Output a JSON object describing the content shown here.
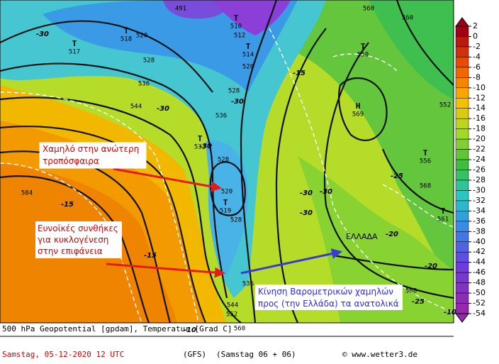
{
  "map": {
    "annotations": [
      {
        "lines": [
          "Χαμηλό στην ανώτερη",
          "τροπόσφαιρα"
        ]
      },
      {
        "lines": [
          "Ευνοϊκές συνθήκες",
          "για κυκλογένεση",
          "στην επιφάνεια"
        ]
      },
      {
        "lines": [
          "Κίνηση Βαρομετρικών χαμηλών",
          "προς (την Ελλάδα) τα ανατολικά"
        ]
      }
    ],
    "country": "ΕΛΛΑΔΑ",
    "centers": [
      {
        "symbol": "T",
        "value": 517
      },
      {
        "symbol": "T",
        "value": 518
      },
      {
        "symbol": "T",
        "value": 510
      },
      {
        "symbol": "T",
        "value": 514
      },
      {
        "symbol": "T",
        "value": 533
      },
      {
        "symbol": "T",
        "value": 519
      },
      {
        "symbol": "T",
        "value": 550
      },
      {
        "symbol": "H",
        "value": 569
      },
      {
        "symbol": "T",
        "value": 556
      },
      {
        "symbol": "T",
        "value": 561
      }
    ],
    "height_labels": [
      491,
      512,
      520,
      520,
      528,
      536,
      544,
      528,
      536,
      528,
      520,
      528,
      536,
      544,
      552,
      560,
      560,
      568,
      560,
      568,
      584,
      552
    ],
    "temperature_labels": [
      -30,
      -30,
      -30,
      -15,
      -30,
      -30,
      -30,
      -25,
      -20,
      -15,
      -10,
      -30,
      -25,
      -15,
      -20,
      -10
    ],
    "colorbar": [
      2,
      0,
      -2,
      -4,
      -6,
      -8,
      -10,
      -12,
      -14,
      -16,
      -18,
      -20,
      -22,
      -24,
      -26,
      -28,
      -30,
      -32,
      -34,
      -36,
      -38,
      -40,
      -42,
      -44,
      -46,
      -48,
      -50,
      -52,
      -54
    ],
    "footer": {
      "line1": "500 hPa Geopotential [gpdam], Temperatur [Grad C]",
      "date": "Samstag, 05-12-2020  12 UTC",
      "model": "(GFS)",
      "run": "(Samstag 06 + 06)",
      "credit": "© www.wetter3.de"
    }
  }
}
